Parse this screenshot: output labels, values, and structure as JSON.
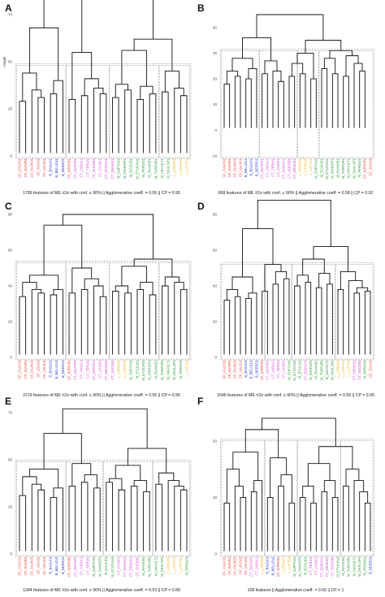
{
  "colors": {
    "CF": "#e8423a",
    "B": "#2d3fd6",
    "CT": "#d24bd6",
    "M": "#2e9a3a",
    "L": "#f0b21e"
  },
  "chart_data": [
    {
      "type": "dendrogram",
      "panel": "A",
      "ylabel": "Height",
      "ylim": [
        0,
        75
      ],
      "yticks": [
        0,
        25,
        50,
        75
      ],
      "caption": "1789 features of ME ±2σ with conf. ≥ 90% || Agglomerative coeff. = 0.55 || CP = 0.95",
      "leaves": [
        {
          "label": "CF_CALFS1",
          "group": "CF"
        },
        {
          "label": "CF_SUNRI1",
          "group": "CF"
        },
        {
          "label": "CF_FAJKO1",
          "group": "CF"
        },
        {
          "label": "CF_JOJUI1",
          "group": "CF"
        },
        {
          "label": "CF_VALK01",
          "group": "CF"
        },
        {
          "label": "B_BAGU01",
          "group": "B"
        },
        {
          "label": "B_BELLEU1",
          "group": "B"
        },
        {
          "label": "B_BEERO1",
          "group": "B"
        },
        {
          "label": "CF_KIPPAR1",
          "group": "CF"
        },
        {
          "label": "CT_MUYAP1",
          "group": "CT"
        },
        {
          "label": "CT_JADUL1",
          "group": "CT"
        },
        {
          "label": "CT_TERUI1",
          "group": "CT"
        },
        {
          "label": "CT_SUCEB1",
          "group": "CT"
        },
        {
          "label": "CT_CAIOF1",
          "group": "CT"
        },
        {
          "label": "CT_DOKOV1",
          "group": "CT"
        },
        {
          "label": "CT_DEMUS1",
          "group": "CT"
        },
        {
          "label": "M_SUPTAH1",
          "group": "M"
        },
        {
          "label": "M_PAHKEP1",
          "group": "M"
        },
        {
          "label": "M_ECULEI1",
          "group": "M"
        },
        {
          "label": "M_ETUCHU1",
          "group": "M"
        },
        {
          "label": "M_PERIG01",
          "group": "M"
        },
        {
          "label": "M_RANKIE1",
          "group": "M"
        },
        {
          "label": "M_TARPUR1",
          "group": "M"
        },
        {
          "label": "M_MAVULT1",
          "group": "M"
        },
        {
          "label": "M_SKALOP1",
          "group": "M"
        },
        {
          "label": "L_LOROU1",
          "group": "L"
        },
        {
          "label": "L_LITRAA1",
          "group": "L"
        },
        {
          "label": "L_LUTTO1",
          "group": "L"
        }
      ]
    },
    {
      "type": "dendrogram",
      "panel": "B",
      "ylabel": "",
      "ylim": [
        -10,
        45
      ],
      "yticks": [
        -10,
        0,
        10,
        20,
        30,
        40
      ],
      "caption": "668 features of ME ±2σ with conf. ≥ 90% || Agglomerative coeff. = 0.58 || CP = 0.92",
      "leaves": [
        {
          "label": "CF_CALFS1",
          "group": "CF"
        },
        {
          "label": "CF_SUNRI1",
          "group": "CF"
        },
        {
          "label": "CF_FAJKO1",
          "group": "CF"
        },
        {
          "label": "CF_VALK01",
          "group": "CF"
        },
        {
          "label": "B_BELLEA1",
          "group": "B"
        },
        {
          "label": "B_BAGU01",
          "group": "B"
        },
        {
          "label": "B_BEERO1",
          "group": "B"
        },
        {
          "label": "CT_MUYAP1",
          "group": "CT"
        },
        {
          "label": "CT_JADUL1",
          "group": "CT"
        },
        {
          "label": "CT_TERUI1",
          "group": "CT"
        },
        {
          "label": "CT_CAIOF1",
          "group": "CT"
        },
        {
          "label": "CT_DOKOV1",
          "group": "CT"
        },
        {
          "label": "CT_SUCEB1",
          "group": "CT"
        },
        {
          "label": "CT_DEMUS1",
          "group": "CT"
        },
        {
          "label": "L_LOROU1",
          "group": "L"
        },
        {
          "label": "L_LITRAA1",
          "group": "L"
        },
        {
          "label": "L_LUTTO1",
          "group": "L"
        },
        {
          "label": "M_SUPTAH1",
          "group": "M"
        },
        {
          "label": "M_ECULEI1",
          "group": "M"
        },
        {
          "label": "M_ETUCHU1",
          "group": "M"
        },
        {
          "label": "M_PAHKEP1",
          "group": "M"
        },
        {
          "label": "M_RANKIE1",
          "group": "M"
        },
        {
          "label": "M_TARPUR1",
          "group": "M"
        },
        {
          "label": "M_MAVULT1",
          "group": "M"
        },
        {
          "label": "M_SKALOP1",
          "group": "M"
        },
        {
          "label": "M_PERIG01",
          "group": "M"
        },
        {
          "label": "CF_KIPPAR1",
          "group": "CF"
        },
        {
          "label": "CF_JOJUI1",
          "group": "CF"
        }
      ]
    },
    {
      "type": "dendrogram",
      "panel": "C",
      "ylabel": "",
      "ylim": [
        0,
        80
      ],
      "yticks": [
        0,
        20,
        40,
        60,
        80
      ],
      "caption": "2219 features of ME ±2σ with conf. ≥ 90% || Agglomerative coeff. = 0.55 || CP = 0.95",
      "leaves": [
        {
          "label": "CF_CALFS1",
          "group": "CF"
        },
        {
          "label": "CF_SUNRI1",
          "group": "CF"
        },
        {
          "label": "CF_FAJKO1",
          "group": "CF"
        },
        {
          "label": "CF_JOJUI1",
          "group": "CF"
        },
        {
          "label": "CF_VALK01",
          "group": "CF"
        },
        {
          "label": "B_BAGU01",
          "group": "B"
        },
        {
          "label": "B_BELLEU1",
          "group": "B"
        },
        {
          "label": "B_BEERO1",
          "group": "B"
        },
        {
          "label": "CF_KIPPAR1",
          "group": "CF"
        },
        {
          "label": "CT_MUYAP1",
          "group": "CT"
        },
        {
          "label": "CT_JADUL1",
          "group": "CT"
        },
        {
          "label": "CT_TERUI1",
          "group": "CT"
        },
        {
          "label": "CT_DOKOV1",
          "group": "CT"
        },
        {
          "label": "CT_CAIOF1",
          "group": "CT"
        },
        {
          "label": "CT_DEMUS1",
          "group": "CT"
        },
        {
          "label": "CT_SUCEB1",
          "group": "CT"
        },
        {
          "label": "L_LOROU1",
          "group": "L"
        },
        {
          "label": "L_LITRAA1",
          "group": "L"
        },
        {
          "label": "M_SUPTAH1",
          "group": "M"
        },
        {
          "label": "M_ECULEI1",
          "group": "M"
        },
        {
          "label": "M_ETUCHU1",
          "group": "M"
        },
        {
          "label": "M_PAHKEP1",
          "group": "M"
        },
        {
          "label": "M_RANKIE1",
          "group": "M"
        },
        {
          "label": "M_TARPUR1",
          "group": "M"
        },
        {
          "label": "M_MAVULT1",
          "group": "M"
        },
        {
          "label": "M_SKALOP1",
          "group": "M"
        },
        {
          "label": "M_PERIG01",
          "group": "M"
        },
        {
          "label": "L_LUTTO1",
          "group": "L"
        }
      ]
    },
    {
      "type": "dendrogram",
      "panel": "D",
      "ylabel": "",
      "ylim": [
        0,
        80
      ],
      "yticks": [
        0,
        20,
        40,
        60,
        80
      ],
      "caption": "1646 features of ME ±2σ with conf. ≥ 90% || Agglomerative coeff. = 0.59 || CP = 0.95",
      "leaves": [
        {
          "label": "CF_CALFS1",
          "group": "CF"
        },
        {
          "label": "CF_SUNRI1",
          "group": "CF"
        },
        {
          "label": "CF_FAJKO1",
          "group": "CF"
        },
        {
          "label": "CF_VALK01",
          "group": "CF"
        },
        {
          "label": "B_BAGU01",
          "group": "B"
        },
        {
          "label": "B_BELLEU1",
          "group": "B"
        },
        {
          "label": "B_BEERO1",
          "group": "B"
        },
        {
          "label": "CF_KIPPAR1",
          "group": "CF"
        },
        {
          "label": "CT_MUYAP1",
          "group": "CT"
        },
        {
          "label": "CT_JADUL1",
          "group": "CT"
        },
        {
          "label": "CT_TERUI1",
          "group": "CT"
        },
        {
          "label": "CT_CAIOF1",
          "group": "CT"
        },
        {
          "label": "M_SUPTAH1",
          "group": "M"
        },
        {
          "label": "M_ETUCHU1",
          "group": "M"
        },
        {
          "label": "M_ECULEI1",
          "group": "M"
        },
        {
          "label": "CT_DOKOV1",
          "group": "CT"
        },
        {
          "label": "M_PAHKEP1",
          "group": "M"
        },
        {
          "label": "M_RANKIE1",
          "group": "M"
        },
        {
          "label": "M_TARPUR1",
          "group": "M"
        },
        {
          "label": "M_MAVULT1",
          "group": "M"
        },
        {
          "label": "M_SKALOP1",
          "group": "M"
        },
        {
          "label": "L_LOROU1",
          "group": "L"
        },
        {
          "label": "L_LITRAA1",
          "group": "L"
        },
        {
          "label": "L_LUTTO1",
          "group": "L"
        },
        {
          "label": "CT_DEMUS1",
          "group": "CT"
        },
        {
          "label": "CT_SUCEB1",
          "group": "CT"
        },
        {
          "label": "M_PERIG01",
          "group": "M"
        },
        {
          "label": "CF_JOJUI1",
          "group": "CF"
        }
      ]
    },
    {
      "type": "dendrogram",
      "panel": "E",
      "ylabel": "",
      "ylim": [
        0,
        75
      ],
      "yticks": [
        0,
        25,
        50,
        75
      ],
      "caption": "1344 features of ME ±2σ with conf. ≥ 90% || Agglomerative coeff. = 0.53 || CP = 0.89",
      "leaves": [
        {
          "label": "CF_CALFS1",
          "group": "CF"
        },
        {
          "label": "CF_SUNRI1",
          "group": "CF"
        },
        {
          "label": "CF_FAJKO1",
          "group": "CF"
        },
        {
          "label": "CF_JOJUI1",
          "group": "CF"
        },
        {
          "label": "CF_VALK01",
          "group": "CF"
        },
        {
          "label": "B_BAGU01",
          "group": "B"
        },
        {
          "label": "B_BELLEU1",
          "group": "B"
        },
        {
          "label": "B_BEERO1",
          "group": "B"
        },
        {
          "label": "CF_KIPPAR1",
          "group": "CF"
        },
        {
          "label": "CT_MUYAP1",
          "group": "CT"
        },
        {
          "label": "CT_JADUL1",
          "group": "CT"
        },
        {
          "label": "CT_TERUI1",
          "group": "CT"
        },
        {
          "label": "M_SUPTAH1",
          "group": "M"
        },
        {
          "label": "M_PAHKEP1",
          "group": "M"
        },
        {
          "label": "M_ECULEI1",
          "group": "M"
        },
        {
          "label": "M_ETUCHU1",
          "group": "M"
        },
        {
          "label": "CT_CAIOF1",
          "group": "CT"
        },
        {
          "label": "CT_DOKOV1",
          "group": "CT"
        },
        {
          "label": "CT_DEMUS1",
          "group": "CT"
        },
        {
          "label": "CT_SUCEB1",
          "group": "CT"
        },
        {
          "label": "M_RANKIE1",
          "group": "M"
        },
        {
          "label": "M_TARPUR1",
          "group": "M"
        },
        {
          "label": "M_MAVULT1",
          "group": "M"
        },
        {
          "label": "M_SKALOP1",
          "group": "M"
        },
        {
          "label": "L_LOROU1",
          "group": "L"
        },
        {
          "label": "L_LITRAA1",
          "group": "L"
        },
        {
          "label": "L_LUTTO1",
          "group": "L"
        },
        {
          "label": "M_PERIG01",
          "group": "M"
        }
      ]
    },
    {
      "type": "dendrogram",
      "panel": "F",
      "ylabel": "",
      "ylim": [
        0,
        25
      ],
      "yticks": [
        0,
        10,
        20
      ],
      "caption": "108 features || Agglomerative coeff. = 0.66 || CP = 1",
      "leaves": [
        {
          "label": "CF_CALFS1",
          "group": "CF"
        },
        {
          "label": "CF_SUNRI1",
          "group": "CF"
        },
        {
          "label": "CF_FAJKO1",
          "group": "CF"
        },
        {
          "label": "CF_JOJUI1",
          "group": "CF"
        },
        {
          "label": "CF_VALK01",
          "group": "CF"
        },
        {
          "label": "CT_MUYAP1",
          "group": "CT"
        },
        {
          "label": "CT_JADUL1",
          "group": "CT"
        },
        {
          "label": "L_LOROU1",
          "group": "L"
        },
        {
          "label": "B_BAGU01",
          "group": "B"
        },
        {
          "label": "B_BELLEU1",
          "group": "B"
        },
        {
          "label": "CF_KIPPAR1",
          "group": "CF"
        },
        {
          "label": "L_LITRAA1",
          "group": "L"
        },
        {
          "label": "L_LUTTO1",
          "group": "L"
        },
        {
          "label": "M_SUPTAH1",
          "group": "M"
        },
        {
          "label": "M_PAHKEP1",
          "group": "M"
        },
        {
          "label": "M_ECULEI1",
          "group": "M"
        },
        {
          "label": "CT_TERUI1",
          "group": "CT"
        },
        {
          "label": "CT_CAIOF1",
          "group": "CT"
        },
        {
          "label": "CT_DOKOV1",
          "group": "CT"
        },
        {
          "label": "CT_DEMUS1",
          "group": "CT"
        },
        {
          "label": "CT_SUCEB1",
          "group": "CT"
        },
        {
          "label": "M_ETUCHU1",
          "group": "M"
        },
        {
          "label": "M_RANKIE1",
          "group": "M"
        },
        {
          "label": "M_TARPUR1",
          "group": "M"
        },
        {
          "label": "M_MAVULT1",
          "group": "M"
        },
        {
          "label": "M_SKALOP1",
          "group": "M"
        },
        {
          "label": "M_PERIG01",
          "group": "M"
        },
        {
          "label": "B_BEERO1",
          "group": "B"
        }
      ]
    }
  ]
}
